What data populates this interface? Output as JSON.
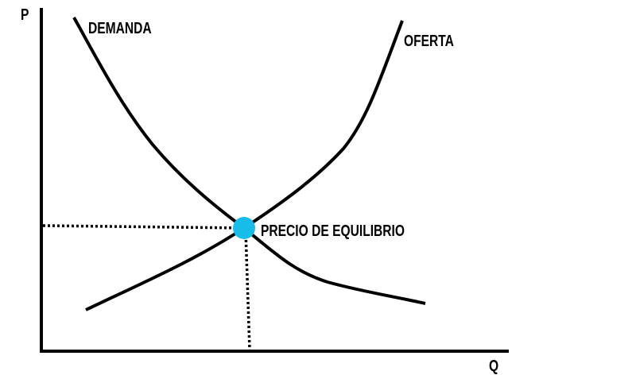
{
  "axes": {
    "y_label": "P",
    "x_label": "Q"
  },
  "curves": {
    "demand_label": "DEMANDA",
    "supply_label": "OFERTA"
  },
  "equilibrium": {
    "label": "PRECIO DE EQUILIBRIO",
    "color": "#17bde8"
  },
  "colors": {
    "line": "#000000",
    "background": "#ffffff"
  }
}
